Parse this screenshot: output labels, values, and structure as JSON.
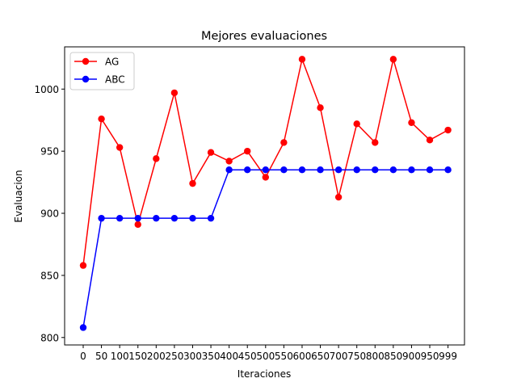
{
  "chart_data": {
    "type": "line",
    "title": "Mejores evaluaciones",
    "xlabel": "Iteraciones",
    "ylabel": "Evaluacion",
    "x": [
      "0",
      "50",
      "100",
      "150",
      "200",
      "250",
      "300",
      "350",
      "400",
      "450",
      "500",
      "550",
      "600",
      "650",
      "700",
      "750",
      "800",
      "850",
      "900",
      "950",
      "999"
    ],
    "yticks": [
      800,
      850,
      900,
      950,
      1000
    ],
    "ylim": [
      794,
      1034
    ],
    "grid": false,
    "legend_position": "top-left",
    "series": [
      {
        "name": "AG",
        "color": "#ff0000",
        "values": [
          858,
          976,
          953,
          891,
          944,
          997,
          924,
          949,
          942,
          950,
          929,
          957,
          1024,
          985,
          913,
          972,
          957,
          1024,
          973,
          959,
          967
        ]
      },
      {
        "name": "ABC",
        "color": "#0000ff",
        "values": [
          808,
          896,
          896,
          896,
          896,
          896,
          896,
          896,
          935,
          935,
          935,
          935,
          935,
          935,
          935,
          935,
          935,
          935,
          935,
          935,
          935
        ]
      }
    ]
  }
}
